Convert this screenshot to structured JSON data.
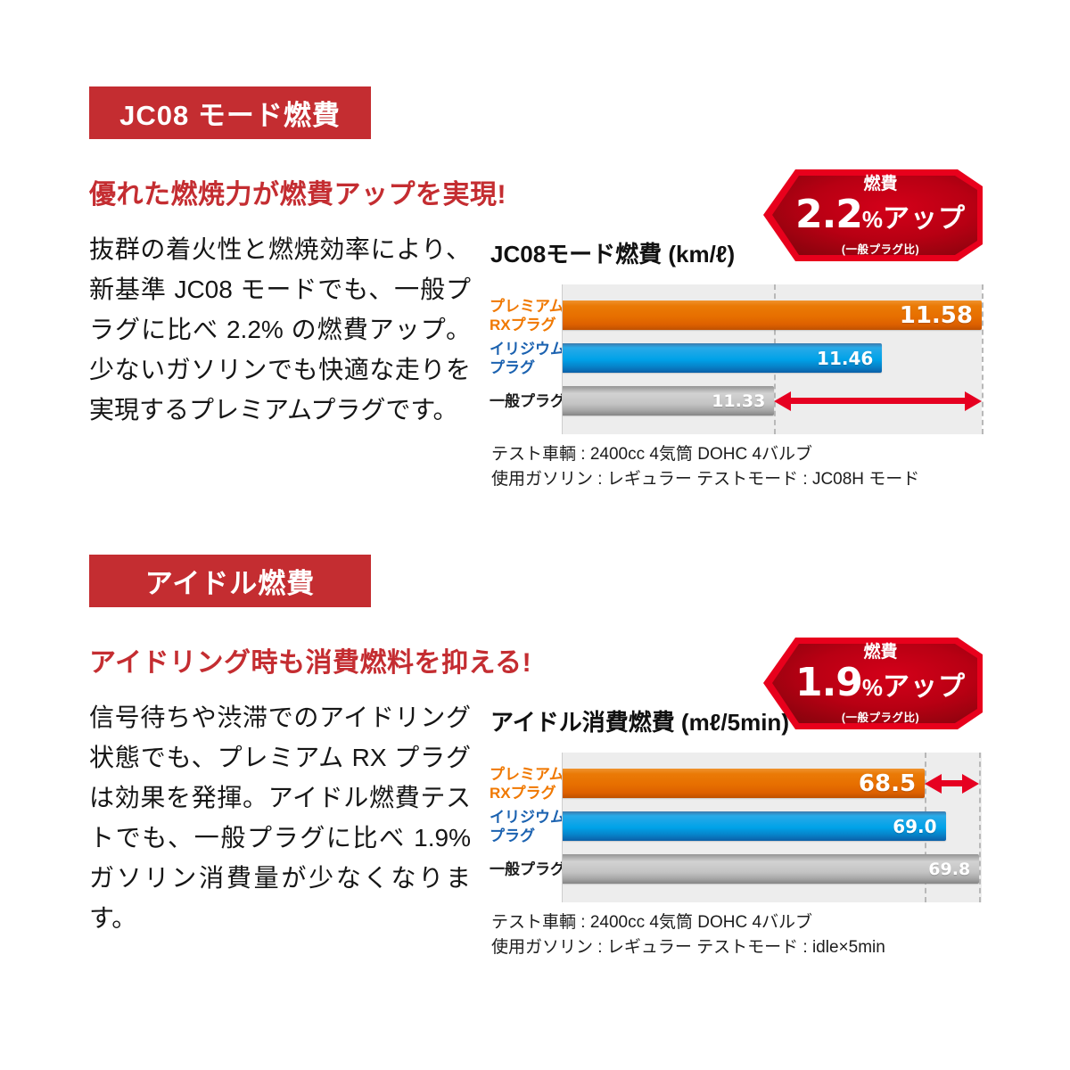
{
  "colors": {
    "accent_red": "#c42d31",
    "badge_border_red": "#e8001c",
    "badge_fill_dark_red": "#b80013",
    "arrow_red": "#e60021",
    "plot_background": "#ededed"
  },
  "sections": [
    {
      "banner": "JC08 モード燃費",
      "headline": "優れた燃焼力が燃費アップを実現!",
      "body": "抜群の着火性と燃焼効率により、新基準 JC08 モードでも、一般プラグに比べ 2.2% の燃費アップ。少ないガソリンでも快適な走りを実現するプレミアムプラグです。",
      "badge": {
        "label": "燃費",
        "value": "2.2",
        "unit": "%",
        "suffix": "アップ",
        "note": "(一般プラグ比)"
      },
      "notes": [
        "テスト車輌 : 2400cc 4気筒 DOHC 4バルブ",
        "使用ガソリン : レギュラー  テストモード : JC08H モード"
      ]
    },
    {
      "banner": "アイドル燃費",
      "headline": "アイドリング時も消費燃料を抑える!",
      "body": "信号待ちや渋滞でのアイドリング状態でも、プレミアム RX プラグは効果を発揮。アイドル燃費テストでも、一般プラグに比べ 1.9% ガソリン消費量が少なくなります。",
      "badge": {
        "label": "燃費",
        "value": "1.9",
        "unit": "%",
        "suffix": "アップ",
        "note": "(一般プラグ比)"
      },
      "notes": [
        "テスト車輌 : 2400cc 4気筒 DOHC 4バルブ",
        "使用ガソリン : レギュラー  テストモード : idle×5min"
      ]
    }
  ],
  "chart_data": [
    {
      "type": "bar",
      "orientation": "horizontal",
      "title": "JC08モード燃費 (km/ℓ)",
      "ylabel": "",
      "xlabel": "km/ℓ",
      "categories": [
        "プレミアムRXプラグ",
        "イリジウムプラグ",
        "一般プラグ"
      ],
      "category_lines": [
        [
          "プレミアム",
          "RXプラグ"
        ],
        [
          "イリジウム",
          "プラグ"
        ],
        [
          "一般プラグ"
        ]
      ],
      "category_colors": [
        "#f07800",
        "#1b62b0",
        "#1c1c1c"
      ],
      "values": [
        11.58,
        11.46,
        11.33
      ],
      "value_labels": [
        "11.58",
        "11.46",
        "11.33"
      ],
      "xlim": [
        11.075,
        11.58
      ],
      "grid": false,
      "legend": false,
      "bar_gradients": [
        [
          "#f0932e 0%",
          "#ea7a06 18%",
          "#e76f00 55%",
          "#dd6000 82%",
          "#bf5000 100%"
        ],
        [
          "#3d79ab 0%",
          "#29aae8 15%",
          "#00a2e8 55%",
          "#0782c8 80%",
          "#0b5fa8 100%"
        ],
        [
          "#949494 0%",
          "#d2d2d2 25%",
          "#c4c4c4 60%",
          "#a8a8a8 82%",
          "#858585 100%"
        ]
      ],
      "dashed_lines": [
        11.33,
        11.58
      ],
      "arrow": {
        "row": 2,
        "from": 11.33,
        "to": 11.58
      },
      "arrow_color": "#e60021"
    },
    {
      "type": "bar",
      "orientation": "horizontal",
      "title": "アイドル消費燃費 (mℓ/5min)",
      "ylabel": "",
      "xlabel": "mℓ/5min",
      "categories": [
        "プレミアムRXプラグ",
        "イリジウムプラグ",
        "一般プラグ"
      ],
      "category_lines": [
        [
          "プレミアム",
          "RXプラグ"
        ],
        [
          "イリジウム",
          "プラグ"
        ],
        [
          "一般プラグ"
        ]
      ],
      "category_colors": [
        "#f07800",
        "#1b62b0",
        "#1c1c1c"
      ],
      "values": [
        68.5,
        69.0,
        69.8
      ],
      "value_labels": [
        "68.5",
        "69.0",
        "69.8"
      ],
      "xlim": [
        59.86,
        69.86
      ],
      "grid": false,
      "legend": false,
      "bar_gradients": [
        [
          "#f0932e 0%",
          "#ea7a06 18%",
          "#e76f00 55%",
          "#dd6000 82%",
          "#bf5000 100%"
        ],
        [
          "#3d79ab 0%",
          "#29aae8 15%",
          "#00a2e8 55%",
          "#0782c8 80%",
          "#0b5fa8 100%"
        ],
        [
          "#949494 0%",
          "#d2d2d2 25%",
          "#c4c4c4 60%",
          "#a8a8a8 82%",
          "#858585 100%"
        ]
      ],
      "dashed_lines": [
        68.5,
        69.8
      ],
      "arrow": {
        "row": 0,
        "from": 68.5,
        "to": 69.8
      },
      "arrow_color": "#e60021"
    }
  ]
}
